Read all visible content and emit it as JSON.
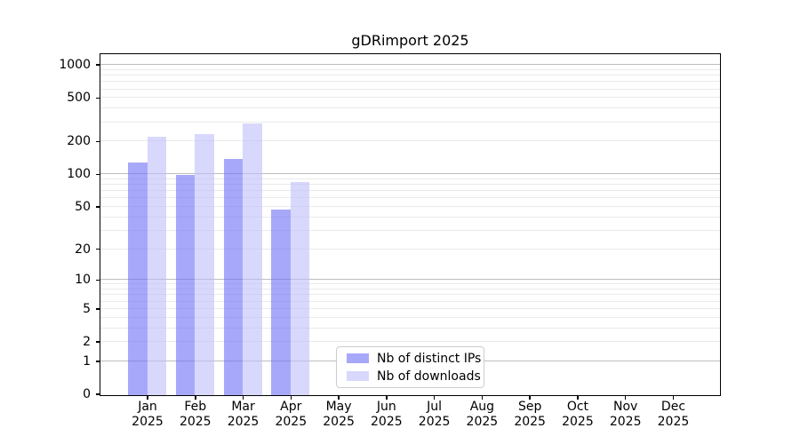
{
  "title": "gDRimport 2025",
  "legend": {
    "items": [
      {
        "label": "Nb of distinct IPs"
      },
      {
        "label": "Nb of downloads"
      }
    ]
  },
  "x_axis": {
    "months": [
      "Jan",
      "Feb",
      "Mar",
      "Apr",
      "May",
      "Jun",
      "Jul",
      "Aug",
      "Sep",
      "Oct",
      "Nov",
      "Dec"
    ],
    "year": "2025"
  },
  "chart_data": {
    "type": "bar",
    "title": "gDRimport 2025",
    "categories": [
      "Jan 2025",
      "Feb 2025",
      "Mar 2025",
      "Apr 2025",
      "May 2025",
      "Jun 2025",
      "Jul 2025",
      "Aug 2025",
      "Sep 2025",
      "Oct 2025",
      "Nov 2025",
      "Dec 2025"
    ],
    "series": [
      {
        "name": "Nb of distinct IPs",
        "fill": "#6e6ef8",
        "alpha": 0.6,
        "values": [
          130,
          100,
          140,
          48,
          0,
          0,
          0,
          0,
          0,
          0,
          0,
          0
        ]
      },
      {
        "name": "Nb of downloads",
        "fill": "#bebefa",
        "alpha": 0.6,
        "values": [
          222,
          238,
          295,
          85,
          0,
          0,
          0,
          0,
          0,
          0,
          0,
          0
        ]
      }
    ],
    "y_scale": "log10(1+v)",
    "y_ticks": [
      0,
      1,
      2,
      5,
      10,
      20,
      50,
      100,
      200,
      500,
      1000
    ],
    "ylim": [
      0,
      1260
    ],
    "grid": {
      "orientation": "horizontal",
      "major_color": "#bdbdbd",
      "minor_color": "#eaeaea"
    },
    "legend_position": "lower center-left inside plot"
  }
}
